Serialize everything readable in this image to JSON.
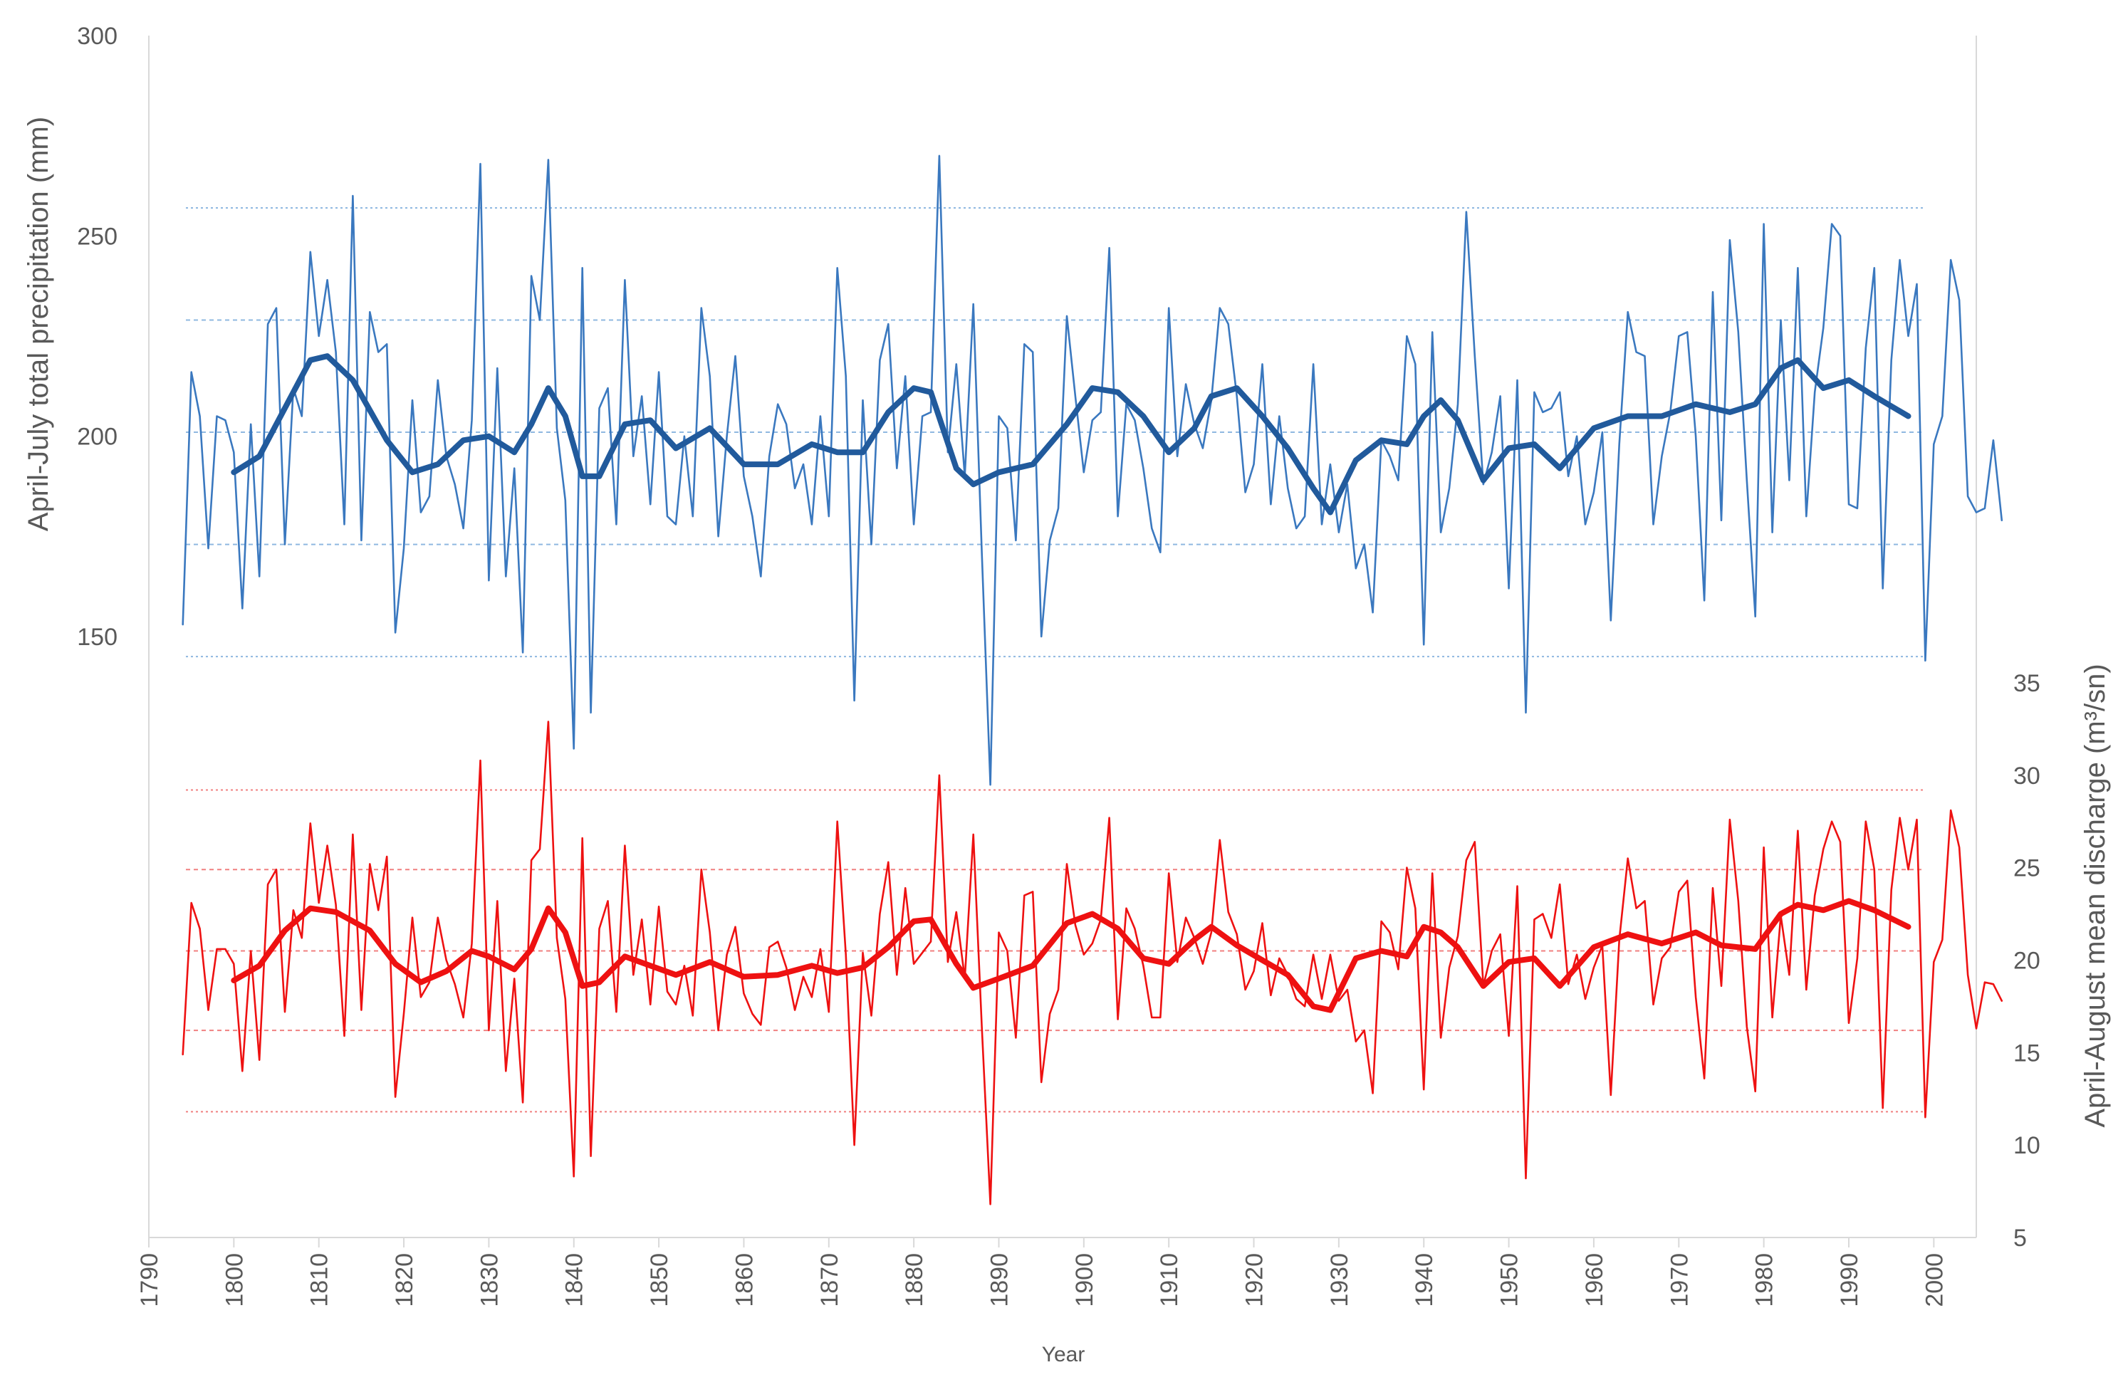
{
  "chart_data": {
    "type": "line",
    "title": "",
    "xlabel": "Year",
    "ylabel_left": "April-July total precipitation (mm)",
    "ylabel_right": "April-August mean discharge (m³/sn)",
    "xlim": [
      1790,
      2005
    ],
    "x_ticks": [
      "1790",
      "1800",
      "1810",
      "1820",
      "1830",
      "1840",
      "1850",
      "1860",
      "1870",
      "1880",
      "1890",
      "1900",
      "1910",
      "1920",
      "1930",
      "1940",
      "1950",
      "1960",
      "1970",
      "1980",
      "1990",
      "2000"
    ],
    "ylim_left": [
      0,
      300
    ],
    "y_ticks_left": [
      "150",
      "200",
      "250",
      "300"
    ],
    "ylim_right": [
      5,
      70
    ],
    "y_ticks_right": [
      "5",
      "10",
      "15",
      "20",
      "25",
      "30",
      "35"
    ],
    "colors": {
      "precip": "#3a78bf",
      "precip_smooth": "#215a9c",
      "discharge": "#ee1111",
      "discharge_smooth": "#ee1111",
      "precip_ref": "#8fb8e0",
      "discharge_ref": "#f08080",
      "axis": "#d9d9d9",
      "text": "#595959"
    },
    "reference_lines": {
      "precip_mm": [
        145,
        173,
        201,
        229,
        257
      ],
      "discharge_m3s": [
        11.8,
        16.2,
        20.5,
        24.9,
        29.2
      ]
    },
    "series": [
      {
        "name": "April-July total precipitation",
        "axis": "left",
        "x_start": 1794,
        "values": [
          153,
          216,
          205,
          172,
          205,
          204,
          196,
          157,
          203,
          165,
          228,
          232,
          173,
          212,
          205,
          246,
          225,
          239,
          221,
          178,
          260,
          174,
          231,
          221,
          223,
          151,
          172,
          209,
          181,
          185,
          214,
          195,
          188,
          177,
          204,
          268,
          164,
          217,
          165,
          192,
          146,
          240,
          229,
          269,
          202,
          184,
          122,
          242,
          131,
          207,
          212,
          178,
          239,
          195,
          210,
          183,
          216,
          180,
          178,
          200,
          180,
          232,
          215,
          175,
          200,
          220,
          190,
          180,
          165,
          195,
          208,
          203,
          187,
          193,
          178,
          205,
          180,
          242,
          215,
          134,
          209,
          173,
          219,
          228,
          192,
          215,
          178,
          205,
          206,
          270,
          196,
          218,
          190,
          233,
          171,
          113,
          205,
          202,
          174,
          223,
          221,
          150,
          174,
          182,
          230,
          210,
          191,
          204,
          206,
          247,
          180,
          208,
          204,
          192,
          177,
          171,
          232,
          195,
          213,
          203,
          197,
          209,
          232,
          228,
          210,
          186,
          193,
          218,
          183,
          205,
          187,
          177,
          180,
          218,
          178,
          193,
          176,
          188,
          167,
          173,
          156,
          199,
          195,
          189,
          225,
          218,
          148,
          226,
          176,
          187,
          208,
          256,
          220,
          188,
          196,
          210,
          162,
          214,
          131,
          211,
          206,
          207,
          211,
          190,
          200,
          178,
          186,
          201,
          154,
          198,
          231,
          221,
          220,
          178,
          195,
          206,
          225,
          226,
          200,
          159,
          236,
          179,
          249,
          226,
          189,
          155,
          253,
          176,
          229,
          189,
          242,
          180,
          211,
          227,
          253,
          250,
          183,
          182,
          222,
          242,
          162,
          219,
          244,
          225,
          238,
          144,
          198,
          205,
          244,
          234,
          185,
          181,
          182,
          199,
          179
        ]
      },
      {
        "name": "April-July total precipitation (smoothed)",
        "axis": "left",
        "x": [
          1800,
          1803,
          1806,
          1809,
          1811,
          1814,
          1818,
          1821,
          1824,
          1827,
          1830,
          1833,
          1835,
          1837,
          1839,
          1841,
          1843,
          1846,
          1849,
          1852,
          1856,
          1860,
          1864,
          1868,
          1871,
          1874,
          1877,
          1880,
          1882,
          1885,
          1887,
          1890,
          1894,
          1898,
          1901,
          1904,
          1907,
          1910,
          1913,
          1915,
          1918,
          1921,
          1924,
          1927,
          1929,
          1932,
          1935,
          1938,
          1940,
          1942,
          1944,
          1947,
          1950,
          1953,
          1956,
          1960,
          1964,
          1968,
          1972,
          1976,
          1979,
          1982,
          1984,
          1987,
          1990,
          1993,
          1997
        ],
        "values": [
          191,
          195,
          207,
          219,
          220,
          214,
          199,
          191,
          193,
          199,
          200,
          196,
          203,
          212,
          205,
          190,
          190,
          203,
          204,
          197,
          202,
          193,
          193,
          198,
          196,
          196,
          206,
          212,
          211,
          192,
          188,
          191,
          193,
          203,
          212,
          211,
          205,
          196,
          202,
          210,
          212,
          205,
          197,
          187,
          181,
          194,
          199,
          198,
          205,
          209,
          204,
          189,
          197,
          198,
          192,
          202,
          205,
          205,
          208,
          206,
          208,
          217,
          219,
          212,
          214,
          210,
          205
        ]
      },
      {
        "name": "April-August mean discharge",
        "axis": "right",
        "x_start": 1794,
        "values": [
          14.9,
          23.1,
          21.7,
          17.3,
          20.6,
          20.6,
          19.8,
          14.0,
          20.5,
          14.6,
          24.1,
          24.9,
          17.2,
          22.7,
          21.2,
          27.4,
          23.1,
          26.2,
          23.0,
          15.9,
          26.8,
          17.3,
          25.2,
          22.7,
          25.6,
          12.6,
          17.1,
          22.3,
          18.0,
          18.8,
          22.3,
          20.0,
          18.7,
          16.9,
          20.9,
          30.8,
          16.2,
          23.2,
          14.0,
          19.0,
          12.3,
          25.4,
          26.0,
          32.9,
          21.2,
          17.9,
          8.3,
          26.6,
          9.4,
          21.7,
          23.2,
          17.2,
          26.2,
          19.2,
          22.2,
          17.6,
          22.9,
          18.3,
          17.6,
          19.7,
          17.0,
          24.9,
          21.5,
          16.2,
          20.3,
          21.8,
          18.2,
          17.1,
          16.5,
          20.7,
          21.0,
          19.6,
          17.3,
          19.1,
          18.0,
          20.6,
          17.2,
          27.5,
          20.3,
          10.0,
          20.4,
          17.0,
          22.5,
          25.3,
          19.2,
          23.9,
          19.8,
          20.4,
          21.0,
          30.0,
          19.9,
          22.6,
          19.0,
          26.8,
          16.4,
          6.8,
          21.5,
          20.5,
          15.8,
          23.5,
          23.7,
          13.4,
          17.1,
          18.4,
          25.2,
          21.9,
          20.3,
          20.9,
          22.2,
          27.7,
          16.8,
          22.8,
          21.7,
          19.7,
          16.9,
          16.9,
          24.7,
          19.9,
          22.3,
          21.2,
          19.8,
          21.5,
          26.5,
          22.6,
          21.4,
          18.4,
          19.4,
          22.0,
          18.1,
          20.1,
          19.2,
          17.9,
          17.5,
          20.3,
          17.9,
          20.3,
          17.8,
          18.4,
          15.6,
          16.2,
          12.8,
          22.1,
          21.5,
          19.5,
          25.0,
          22.8,
          13.0,
          24.7,
          15.8,
          19.6,
          21.3,
          25.4,
          26.4,
          18.6,
          20.5,
          21.4,
          15.9,
          24.0,
          8.2,
          22.2,
          22.5,
          21.2,
          24.1,
          18.7,
          20.3,
          17.9,
          19.6,
          20.8,
          12.7,
          21.1,
          25.5,
          22.8,
          23.2,
          17.6,
          20.1,
          20.7,
          23.7,
          24.3,
          18.0,
          13.6,
          23.9,
          18.6,
          27.6,
          23.2,
          16.4,
          12.9,
          26.1,
          16.9,
          22.4,
          19.2,
          27.0,
          18.4,
          23.5,
          26.0,
          27.5,
          26.4,
          16.6,
          20.1,
          27.5,
          24.9,
          12.0,
          23.8,
          27.7,
          24.9,
          27.6,
          11.5,
          19.9,
          21.1,
          28.1,
          26.1,
          19.2,
          16.3,
          18.8,
          18.7,
          17.8
        ]
      },
      {
        "name": "April-August mean discharge (smoothed)",
        "axis": "right",
        "x": [
          1800,
          1803,
          1806,
          1809,
          1812,
          1816,
          1819,
          1822,
          1825,
          1828,
          1830,
          1833,
          1835,
          1837,
          1839,
          1841,
          1843,
          1846,
          1849,
          1852,
          1856,
          1860,
          1864,
          1868,
          1871,
          1874,
          1877,
          1880,
          1882,
          1885,
          1887,
          1890,
          1894,
          1898,
          1901,
          1904,
          1907,
          1910,
          1913,
          1915,
          1918,
          1921,
          1924,
          1927,
          1929,
          1932,
          1935,
          1938,
          1940,
          1942,
          1944,
          1947,
          1950,
          1953,
          1956,
          1960,
          1964,
          1968,
          1972,
          1975,
          1979,
          1982,
          1984,
          1987,
          1990,
          1993,
          1997
        ],
        "values": [
          18.9,
          19.7,
          21.6,
          22.8,
          22.6,
          21.6,
          19.8,
          18.8,
          19.4,
          20.5,
          20.2,
          19.5,
          20.6,
          22.8,
          21.5,
          18.6,
          18.8,
          20.2,
          19.7,
          19.2,
          19.9,
          19.1,
          19.2,
          19.7,
          19.3,
          19.6,
          20.7,
          22.1,
          22.2,
          19.8,
          18.5,
          19.0,
          19.7,
          22.0,
          22.5,
          21.7,
          20.1,
          19.8,
          21.1,
          21.8,
          20.8,
          20.0,
          19.2,
          17.5,
          17.3,
          20.1,
          20.5,
          20.2,
          21.8,
          21.5,
          20.7,
          18.6,
          19.9,
          20.1,
          18.6,
          20.7,
          21.4,
          20.9,
          21.5,
          20.8,
          20.6,
          22.5,
          23.0,
          22.7,
          23.2,
          22.7,
          21.8
        ]
      }
    ]
  }
}
